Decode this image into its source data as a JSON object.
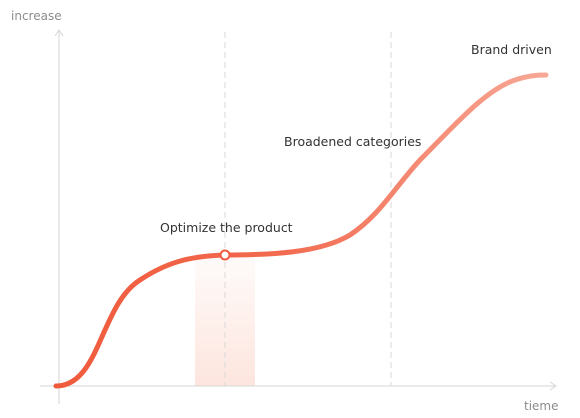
{
  "axes": {
    "y_label": "increase",
    "x_label": "tieme"
  },
  "stages": [
    {
      "label": "Optimize the product"
    },
    {
      "label": "Broadened categories"
    },
    {
      "label": "Brand driven"
    }
  ],
  "colors": {
    "curve_start": "#f05a3c",
    "curve_end": "#f7a896",
    "highlight_band": "#fde5de",
    "axis": "#d6d6d6",
    "guide": "#d9d9d9",
    "marker_fill": "#ffffff",
    "marker_stroke": "#f05a3c"
  }
}
